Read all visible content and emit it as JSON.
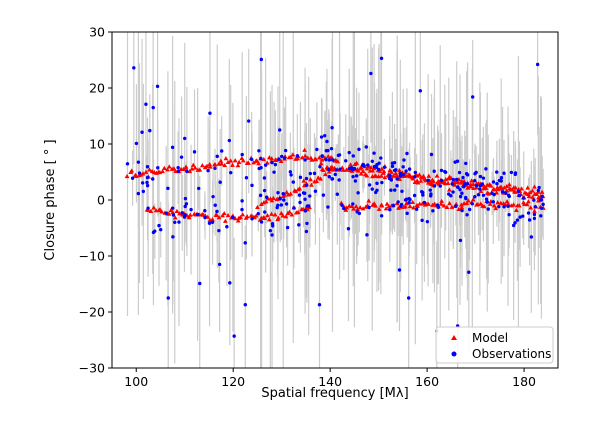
{
  "chart_data": {
    "type": "scatter",
    "xlabel": "Spatial frequency [MλSUB]",
    "ylabel": "Closure phase [ ° ]",
    "xlim": [
      95,
      187
    ],
    "ylim": [
      -30,
      30
    ],
    "xticks": [
      "100",
      "120",
      "140",
      "160",
      "180"
    ],
    "yticks": [
      "−30",
      "−20",
      "−10",
      "0",
      "10",
      "20",
      "30"
    ],
    "grid": false,
    "legend_placement": "bottom-right",
    "colors": {
      "model": "#ff0000",
      "observations": "#0000ff",
      "errorbar": "#cccccc"
    },
    "series": [
      {
        "name": "Model",
        "marker": "triangle",
        "bands": [
          {
            "x": [
              98,
              110,
              122,
              134,
              142
            ],
            "y": [
              4.3,
              5.6,
              6.8,
              7.6,
              7.2
            ]
          },
          {
            "x": [
              144,
              152,
              160,
              170,
              184
            ],
            "y": [
              6.4,
              5.2,
              3.9,
              2.6,
              1.5
            ]
          },
          {
            "x": [
              102,
              110,
              120,
              130,
              136
            ],
            "y": [
              -2.0,
              -2.6,
              -3.2,
              -2.8,
              -1.5
            ]
          },
          {
            "x": [
              125,
              131,
              137,
              141
            ],
            "y": [
              -1.0,
              1.0,
              3.5,
              6.0
            ]
          },
          {
            "x": [
              142,
              155,
              170,
              184
            ],
            "y": [
              -1.3,
              -1.0,
              -0.8,
              -1.2
            ]
          },
          {
            "x": [
              138,
              146,
              158,
              170,
              184
            ],
            "y": [
              6.0,
              5.0,
              3.6,
              2.2,
              0.5
            ]
          }
        ]
      },
      {
        "name": "Observations",
        "marker": "circle",
        "points": [
          [
            99.5,
            23.6
          ],
          [
            101.2,
            12.1
          ],
          [
            102.0,
            17.1
          ],
          [
            103.5,
            16.5
          ],
          [
            104.4,
            20.3
          ],
          [
            106.6,
            -17.5
          ],
          [
            107.5,
            9.4
          ],
          [
            110.0,
            11.0
          ],
          [
            113.1,
            -14.9
          ],
          [
            115.2,
            15.5
          ],
          [
            117.2,
            -11.5
          ],
          [
            119.3,
            -14.8
          ],
          [
            120.2,
            -24.3
          ],
          [
            122.5,
            -18.7
          ],
          [
            123.2,
            14.1
          ],
          [
            125.8,
            25.1
          ],
          [
            129.6,
            12.5
          ],
          [
            137.8,
            -18.7
          ],
          [
            140.4,
            12.9
          ],
          [
            148.4,
            22.6
          ],
          [
            150.6,
            25.3
          ],
          [
            154.3,
            -12.5
          ],
          [
            156.2,
            -17.5
          ],
          [
            158.6,
            19.5
          ],
          [
            162.0,
            -23.4
          ],
          [
            166.3,
            -22.5
          ],
          [
            168.6,
            -12.9
          ],
          [
            169.4,
            18.4
          ],
          [
            182.8,
            24.2
          ],
          [
            181.5,
            -6.6
          ]
        ]
      }
    ]
  }
}
